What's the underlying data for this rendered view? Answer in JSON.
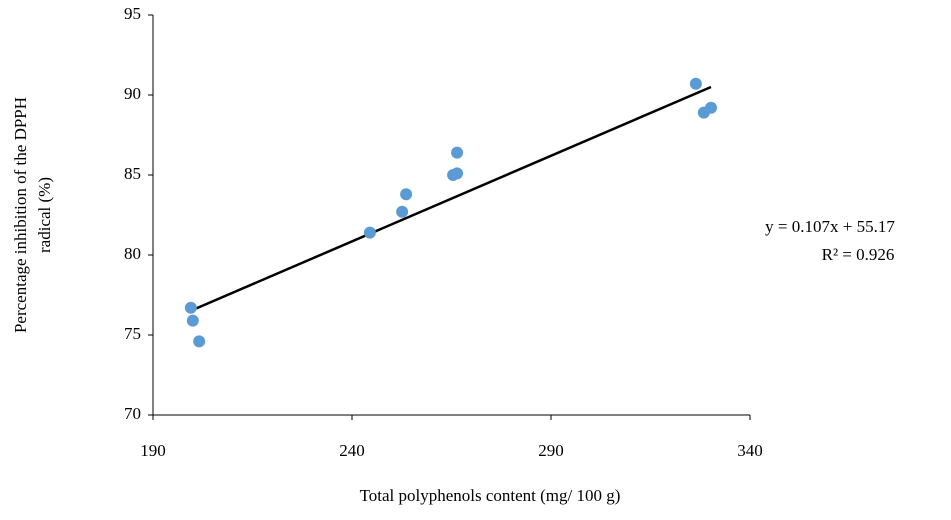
{
  "chart_data": {
    "type": "scatter",
    "xlabel": "Total polyphenols content (mg/ 100 g)",
    "ylabel": [
      "Percentage inhibition of the DPPH",
      "radical (%)"
    ],
    "series": [
      {
        "color": "#5b9bd5",
        "x": [
          199.5,
          200.0,
          201.6,
          244.5,
          252.6,
          253.6,
          265.4,
          266.4,
          266.4,
          326.4,
          328.4,
          330.2
        ],
        "values": [
          76.7,
          75.9,
          74.6,
          81.4,
          82.7,
          83.8,
          85.0,
          85.1,
          86.4,
          90.7,
          88.9,
          89.2
        ]
      }
    ],
    "trendline": {
      "slope": 0.107,
      "intercept": 55.17,
      "color": "#000000",
      "equation": "y = 0.107x + 55.17",
      "r2": "R² = 0.926"
    },
    "xlim": [
      190,
      340
    ],
    "xticks": [
      190,
      240,
      290,
      340
    ],
    "ylim": [
      70,
      95
    ],
    "yticks": [
      70,
      75,
      80,
      85,
      90,
      95
    ],
    "grid": false
  }
}
